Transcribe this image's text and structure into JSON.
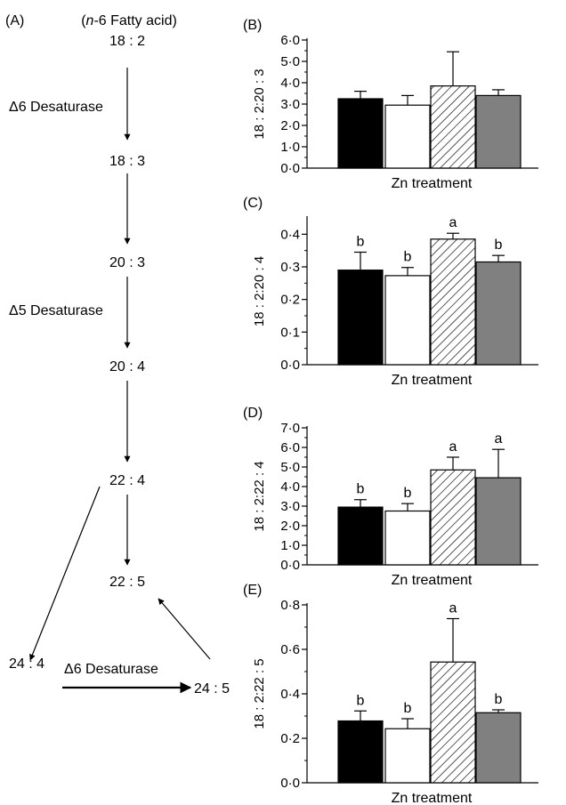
{
  "pathway": {
    "panel_label": "(A)",
    "header_prefix": "(",
    "header_italic": "n",
    "header_rest": "-6 Fatty acid)",
    "nodes": [
      "18 : 2",
      "18 : 3",
      "20 : 3",
      "20 : 4",
      "22 : 4",
      "22 : 5",
      "24 : 4",
      "24 : 5"
    ],
    "enzyme_labels": [
      "Δ6 Desaturase",
      "Δ5 Desaturase",
      "Δ6 Desaturase"
    ]
  },
  "chart_data": [
    {
      "type": "bar",
      "panel_label": "(B)",
      "ylabel": "18 : 2:20 : 3",
      "xlabel": "Zn treatment",
      "ylim": [
        0,
        6
      ],
      "yticks": [
        "0·0",
        "1·0",
        "2·0",
        "3·0",
        "4·0",
        "5·0",
        "6·0"
      ],
      "values": [
        3.25,
        2.95,
        3.85,
        3.4
      ],
      "errors": [
        0.35,
        0.45,
        1.6,
        0.27
      ],
      "sig_letters": [
        "",
        "",
        "",
        ""
      ],
      "bar_styles": [
        "black",
        "white",
        "hatched",
        "gray"
      ]
    },
    {
      "type": "bar",
      "panel_label": "(C)",
      "ylabel": "18 : 2:20 : 4",
      "xlabel": "Zn treatment",
      "ylim": [
        0,
        0.45
      ],
      "yticks": [
        "0·0",
        "0·1",
        "0·2",
        "0·3",
        "0·4"
      ],
      "values": [
        0.29,
        0.273,
        0.385,
        0.315
      ],
      "errors": [
        0.055,
        0.025,
        0.018,
        0.02
      ],
      "sig_letters": [
        "b",
        "b",
        "a",
        "b"
      ],
      "bar_styles": [
        "black",
        "white",
        "hatched",
        "gray"
      ]
    },
    {
      "type": "bar",
      "panel_label": "(D)",
      "ylabel": "18 : 2:22 : 4",
      "xlabel": "Zn treatment",
      "ylim": [
        0,
        7
      ],
      "yticks": [
        "0·0",
        "1·0",
        "2·0",
        "3·0",
        "4·0",
        "5·0",
        "6·0",
        "7·0"
      ],
      "values": [
        2.95,
        2.75,
        4.85,
        4.45
      ],
      "errors": [
        0.38,
        0.38,
        0.65,
        1.45
      ],
      "sig_letters": [
        "b",
        "b",
        "a",
        "a"
      ],
      "bar_styles": [
        "black",
        "white",
        "hatched",
        "gray"
      ]
    },
    {
      "type": "bar",
      "panel_label": "(E)",
      "ylabel": "18 : 2:22 : 5",
      "xlabel": "Zn treatment",
      "ylim": [
        0,
        0.8
      ],
      "yticks": [
        "0·0",
        "0·2",
        "0·4",
        "0·6",
        "0·8"
      ],
      "values": [
        0.278,
        0.243,
        0.543,
        0.315
      ],
      "errors": [
        0.045,
        0.045,
        0.195,
        0.013
      ],
      "sig_letters": [
        "b",
        "b",
        "a",
        "b"
      ],
      "bar_styles": [
        "black",
        "white",
        "hatched",
        "gray"
      ]
    }
  ]
}
